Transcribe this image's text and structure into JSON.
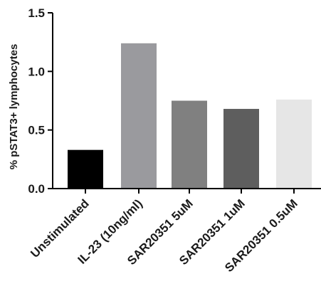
{
  "chart_data": {
    "type": "bar",
    "title": "",
    "xlabel": "",
    "ylabel": "% pSTAT3+ lymphocytes",
    "ylim": [
      0,
      1.5
    ],
    "yticks": [
      "0.0",
      "0.5",
      "1.0",
      "1.5"
    ],
    "grid": false,
    "categories": [
      "Unstimulated",
      "IL-23 (10ng/ml)",
      "SAR20351 5uM",
      "SAR20351 1uM",
      "SAR20351 0.5uM"
    ],
    "values": [
      0.33,
      1.24,
      0.75,
      0.68,
      0.76
    ],
    "colors": [
      "#000000",
      "#9a9a9e",
      "#808080",
      "#5e5e5e",
      "#e6e6e6"
    ]
  }
}
